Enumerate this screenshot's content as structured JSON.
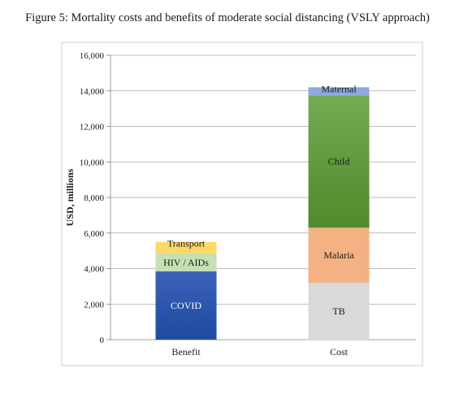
{
  "figure": {
    "caption": "Figure 5: Mortality costs and benefits of moderate social distancing (VSLY approach)"
  },
  "chart_data": {
    "type": "bar",
    "stacked": true,
    "categories": [
      "Benefit",
      "Cost"
    ],
    "ylabel": "USD, millions",
    "xlabel": "",
    "ylim": [
      0,
      16000
    ],
    "yticks": [
      0,
      2000,
      4000,
      6000,
      8000,
      10000,
      12000,
      14000,
      16000
    ],
    "ytick_labels": [
      "0",
      "2,000",
      "4,000",
      "6,000",
      "8,000",
      "10,000",
      "12,000",
      "14,000",
      "16,000"
    ],
    "grid": true,
    "legend": "none",
    "segments": [
      {
        "category": "Benefit",
        "label": "COVID",
        "value": 3850,
        "color": "#3a62b8",
        "color2": "#1f4aa0",
        "text_color": "#ffffff"
      },
      {
        "category": "Benefit",
        "label": "HIV / AIDs",
        "value": 1000,
        "color": "#c5e0b4",
        "color2": "#c5e0b4",
        "text_color": "#1a1a1a"
      },
      {
        "category": "Benefit",
        "label": "Transport",
        "value": 650,
        "color": "#ffd966",
        "color2": "#ffd966",
        "text_color": "#1a1a1a"
      },
      {
        "category": "Cost",
        "label": "TB",
        "value": 3200,
        "color": "#d9d9d9",
        "color2": "#d9d9d9",
        "text_color": "#1a1a1a"
      },
      {
        "category": "Cost",
        "label": "Malaria",
        "value": 3100,
        "color": "#f4b183",
        "color2": "#f4b183",
        "text_color": "#1a1a1a"
      },
      {
        "category": "Cost",
        "label": "Child",
        "value": 7450,
        "color": "#74ab54",
        "color2": "#4f8a2b",
        "text_color": "#1a1a1a"
      },
      {
        "category": "Cost",
        "label": "Maternal",
        "value": 450,
        "color": "#8faadc",
        "color2": "#8faadc",
        "text_color": "#1a1a1a"
      }
    ]
  }
}
